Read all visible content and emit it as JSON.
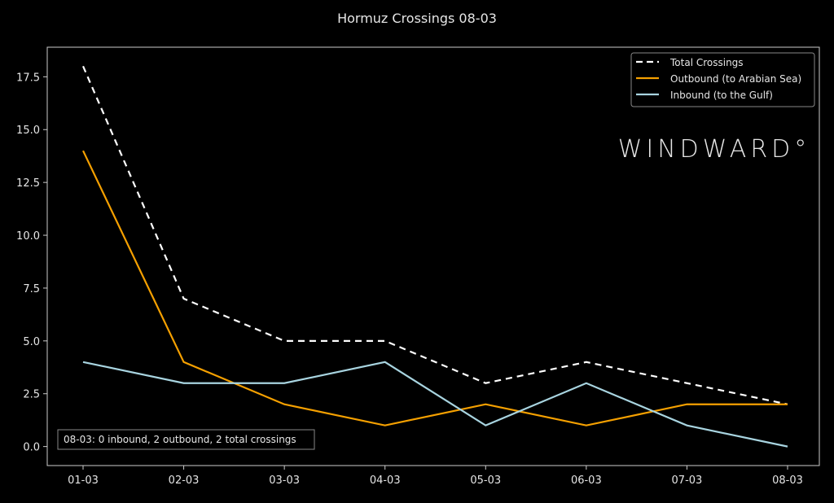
{
  "chart_data": {
    "type": "line",
    "title": "Hormuz Crossings 08-03",
    "xlabel": "",
    "ylabel": "",
    "categories": [
      "01-03",
      "02-03",
      "03-03",
      "04-03",
      "05-03",
      "06-03",
      "07-03",
      "08-03"
    ],
    "yticks": [
      "0.0",
      "2.5",
      "5.0",
      "7.5",
      "10.0",
      "12.5",
      "15.0",
      "17.5"
    ],
    "ylim": [
      -0.9,
      18.9
    ],
    "grid": false,
    "legend_placement": "top-right",
    "series": [
      {
        "name": "Total Crossings",
        "values": [
          18,
          7,
          5,
          5,
          3,
          4,
          3,
          2
        ],
        "color": "#ffffff",
        "dashed": true
      },
      {
        "name": "Outbound (to Arabian Sea)",
        "values": [
          14,
          4,
          2,
          1,
          2,
          1,
          2,
          2
        ],
        "color": "#f5a000",
        "dashed": false
      },
      {
        "name": "Inbound (to the Gulf)",
        "values": [
          4,
          3,
          3,
          4,
          1,
          3,
          1,
          0
        ],
        "color": "#a8d4e0",
        "dashed": false
      }
    ],
    "annotation": "08-03: 0 inbound, 2 outbound, 2 total crossings",
    "watermark": "WINDWARD°",
    "background": "#000000"
  }
}
